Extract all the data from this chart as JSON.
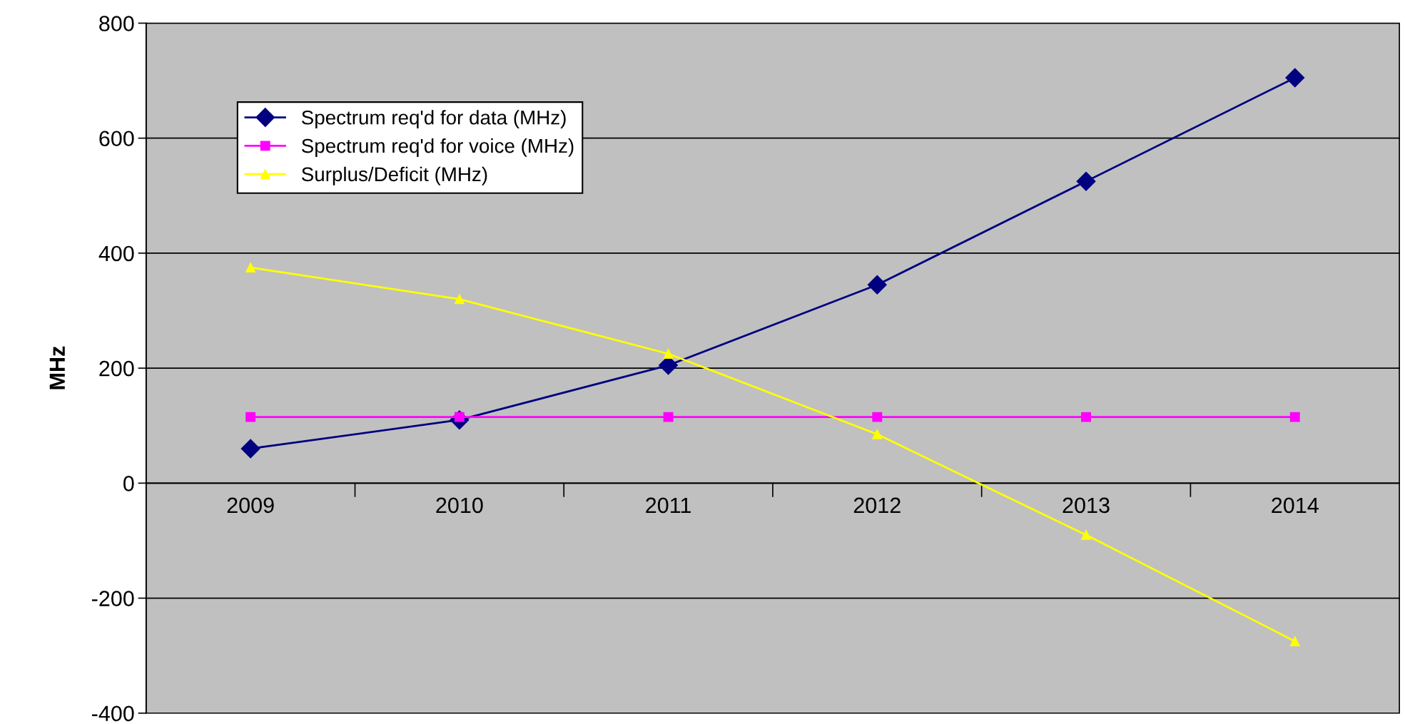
{
  "chart_data": {
    "type": "line",
    "ylabel": "MHz",
    "categories": [
      "2009",
      "2010",
      "2011",
      "2012",
      "2013",
      "2014"
    ],
    "series": [
      {
        "name": "Spectrum req'd for data (MHz)",
        "color": "#000080",
        "marker": "diamond",
        "values": [
          60,
          110,
          205,
          345,
          525,
          705
        ]
      },
      {
        "name": "Spectrum req'd for voice (MHz)",
        "color": "#ff00ff",
        "marker": "square",
        "values": [
          115,
          115,
          115,
          115,
          115,
          115
        ]
      },
      {
        "name": "Surplus/Deficit (MHz)",
        "color": "#ffff00",
        "marker": "triangle",
        "values": [
          375,
          320,
          225,
          85,
          -90,
          -275
        ]
      }
    ],
    "ylim": [
      -400,
      800
    ],
    "yticks": [
      -400,
      -200,
      0,
      200,
      400,
      600,
      800
    ],
    "grid": "y",
    "legend": "top left",
    "line_style": "solid"
  }
}
